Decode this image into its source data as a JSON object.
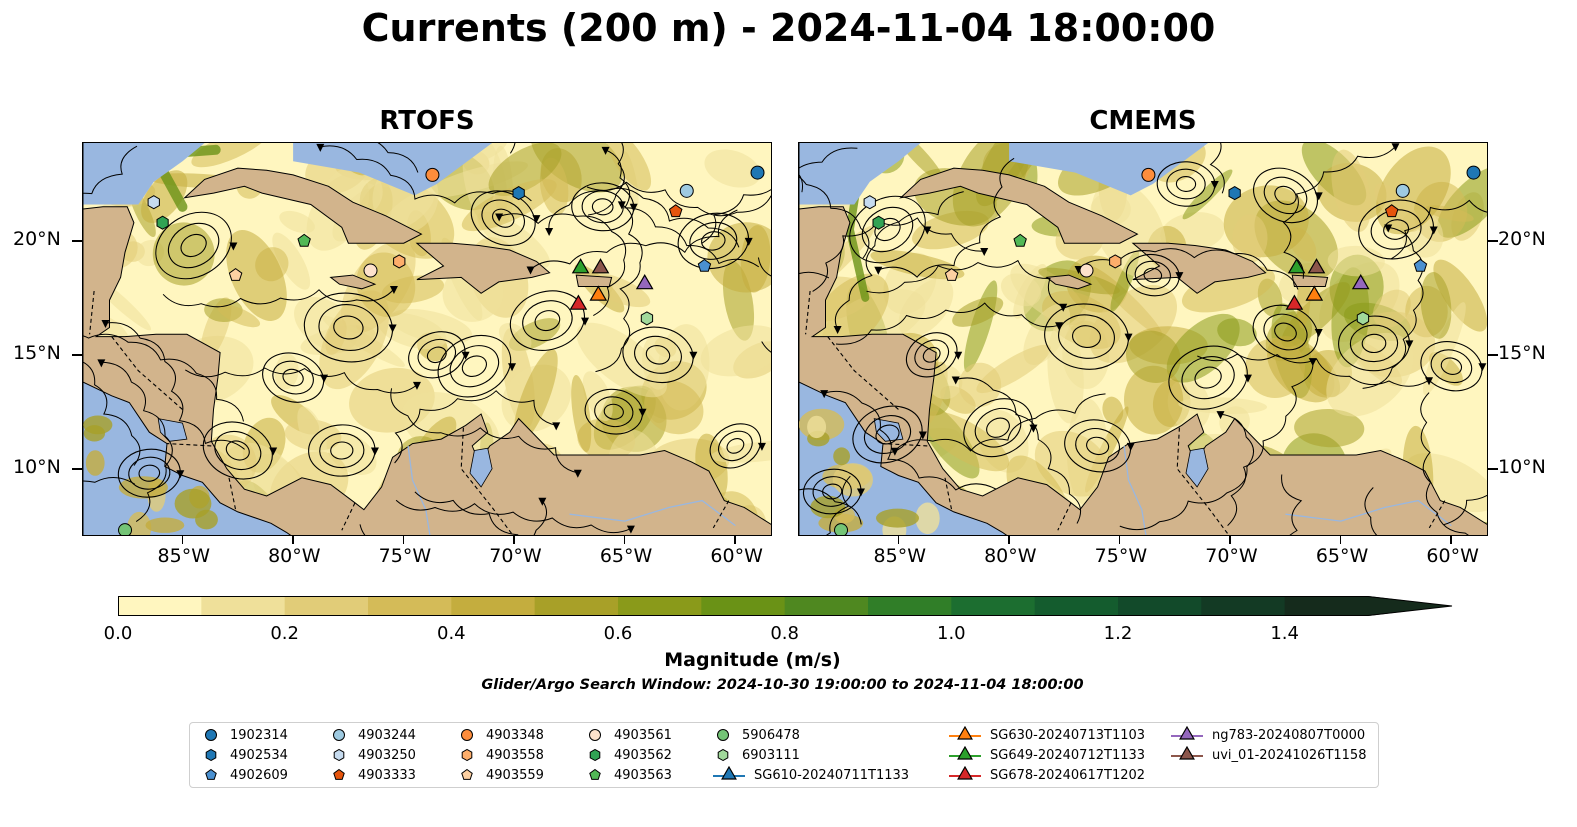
{
  "title": "Currents (200 m) - 2024-11-04 18:00:00",
  "panels": [
    {
      "title": "RTOFS"
    },
    {
      "title": "CMEMS"
    }
  ],
  "axes": {
    "lon_ticks": [
      "85°W",
      "80°W",
      "75°W",
      "70°W",
      "65°W",
      "60°W"
    ],
    "lat_ticks": [
      "20°N",
      "15°N",
      "10°N"
    ],
    "lon_range": [
      -89.5,
      -58.3
    ],
    "lat_range": [
      7.0,
      24.3
    ]
  },
  "colorbar": {
    "label": "Magnitude (m/s)",
    "tick_labels": [
      "0.0",
      "0.2",
      "0.4",
      "0.6",
      "0.8",
      "1.0",
      "1.2",
      "1.4"
    ],
    "min": 0.0,
    "max": 1.5,
    "extend": "max",
    "colors": [
      "#fff6bf",
      "#efe09a",
      "#e1cc78",
      "#d4bb58",
      "#c4ad3e",
      "#a8a028",
      "#8a9a1a",
      "#6a9216",
      "#4f8820",
      "#307e28",
      "#1c6e30",
      "#145c2e",
      "#124a2a",
      "#133a24",
      "#152b1c"
    ]
  },
  "search_window": "Glider/Argo Search Window: 2024-10-30 19:00:00 to 2024-11-04 18:00:00",
  "legend": {
    "entries": [
      {
        "label": "1902314",
        "marker": "circle",
        "color": "#1f77b4"
      },
      {
        "label": "4902534",
        "marker": "hexagon",
        "color": "#1f77b4"
      },
      {
        "label": "4902609",
        "marker": "pentagon",
        "color": "#4a90d0"
      },
      {
        "label": "4903244",
        "marker": "circle",
        "color": "#9ecae1"
      },
      {
        "label": "4903250",
        "marker": "hexagon",
        "color": "#c6dbef"
      },
      {
        "label": "4903333",
        "marker": "pentagon",
        "color": "#e6550d"
      },
      {
        "label": "4903348",
        "marker": "circle",
        "color": "#fd8d3c"
      },
      {
        "label": "4903558",
        "marker": "hexagon",
        "color": "#fdae6b"
      },
      {
        "label": "4903559",
        "marker": "pentagon",
        "color": "#fdd0a2"
      },
      {
        "label": "4903561",
        "marker": "circle",
        "color": "#fde2cc"
      },
      {
        "label": "4903562",
        "marker": "hexagon",
        "color": "#31a354"
      },
      {
        "label": "4903563",
        "marker": "pentagon",
        "color": "#52b856"
      },
      {
        "label": "5906478",
        "marker": "circle",
        "color": "#74c476"
      },
      {
        "label": "6903111",
        "marker": "hexagon",
        "color": "#a1d99b"
      },
      {
        "label": "SG610-20240711T1133",
        "marker": "triangle-line",
        "color": "#1f77b4"
      },
      {
        "label": "SG630-20240713T1103",
        "marker": "triangle-line",
        "color": "#ff7f0e"
      },
      {
        "label": "SG649-20240712T1133",
        "marker": "triangle-line",
        "color": "#2ca02c"
      },
      {
        "label": "SG678-20240617T1202",
        "marker": "triangle-line",
        "color": "#d62728"
      },
      {
        "label": "ng783-20240807T0000",
        "marker": "triangle-line",
        "color": "#9467bd"
      },
      {
        "label": "uvi_01-20241026T1158",
        "marker": "triangle-line",
        "color": "#8c564b"
      }
    ]
  },
  "observations": [
    {
      "id": "1902314",
      "lon": -59.0,
      "lat": 23.0
    },
    {
      "id": "4902534",
      "lon": -69.8,
      "lat": 22.1
    },
    {
      "id": "4902609",
      "lon": -61.4,
      "lat": 18.9
    },
    {
      "id": "4903244",
      "lon": -62.2,
      "lat": 22.2
    },
    {
      "id": "4903250",
      "lon": -86.3,
      "lat": 21.7
    },
    {
      "id": "4903333",
      "lon": -62.7,
      "lat": 21.3
    },
    {
      "id": "4903348",
      "lon": -73.7,
      "lat": 22.9
    },
    {
      "id": "4903558",
      "lon": -75.2,
      "lat": 19.1
    },
    {
      "id": "4903559",
      "lon": -82.6,
      "lat": 18.5
    },
    {
      "id": "4903561",
      "lon": -76.5,
      "lat": 18.7
    },
    {
      "id": "4903562",
      "lon": -85.9,
      "lat": 20.8
    },
    {
      "id": "4903563",
      "lon": -79.5,
      "lat": 20.0
    },
    {
      "id": "5906478",
      "lon": -87.6,
      "lat": 7.3
    },
    {
      "id": "6903111",
      "lon": -64.0,
      "lat": 16.6
    },
    {
      "id": "SG630-20240713T1103",
      "lon": -66.2,
      "lat": 17.6
    },
    {
      "id": "SG649-20240712T1133",
      "lon": -67.0,
      "lat": 18.8
    },
    {
      "id": "SG678-20240617T1202",
      "lon": -67.1,
      "lat": 17.2
    },
    {
      "id": "ng783-20240807T0000",
      "lon": -64.1,
      "lat": 18.1
    },
    {
      "id": "uvi_01-20241026T1158",
      "lon": -66.1,
      "lat": 18.8
    }
  ]
}
